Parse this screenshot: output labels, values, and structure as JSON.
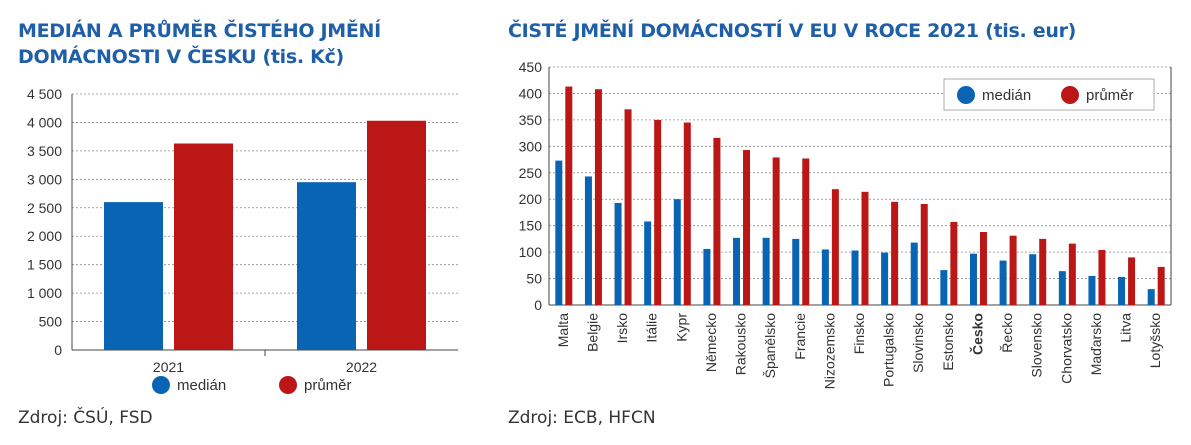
{
  "left_panel": {
    "title": "MEDIÁN A PRŮMĚR ČISTÉHO JMĚNÍ DOMÁCNOSTI V ČESKU (tis. Kč)",
    "source": "Zdroj: ČSÚ, FSD"
  },
  "right_panel": {
    "title": "ČISTÉ JMĚNÍ DOMÁCNOSTÍ V EU V ROCE 2021 (tis. eur)",
    "source": "Zdroj: ECB, HFCN"
  },
  "colors": {
    "median": "#0a64b4",
    "mean": "#bb1717",
    "title": "#1f5fa8"
  },
  "chart_data": [
    {
      "type": "bar",
      "title": "MEDIÁN A PRŮMĚR ČISTÉHO JMĚNÍ DOMÁCNOSTI V ČESKU (tis. Kč)",
      "categories": [
        "2021",
        "2022"
      ],
      "series": [
        {
          "name": "medián",
          "values": [
            2600,
            2950
          ]
        },
        {
          "name": "průměr",
          "values": [
            3630,
            4030
          ]
        }
      ],
      "ylim": [
        0,
        4500
      ],
      "yticks": [
        0,
        500,
        1000,
        1500,
        2000,
        2500,
        3000,
        3500,
        4000,
        4500
      ],
      "ytick_labels": [
        "0",
        "500",
        "1 000",
        "1 500",
        "2 000",
        "2 500",
        "3 000",
        "3 500",
        "4 000",
        "4 500"
      ],
      "grid": true,
      "legend": "bottom"
    },
    {
      "type": "bar",
      "title": "ČISTÉ JMĚNÍ DOMÁCNOSTÍ V EU V ROCE 2021 (tis. eur)",
      "categories": [
        "Malta",
        "Belgie",
        "Irsko",
        "Itálie",
        "Kypr",
        "Německo",
        "Rakousko",
        "Španělsko",
        "Francie",
        "Nizozemsko",
        "Finsko",
        "Portugalsko",
        "Slovinsko",
        "Estonsko",
        "Česko",
        "Řecko",
        "Slovensko",
        "Chorvatsko",
        "Maďarsko",
        "Litva",
        "Lotyšsko"
      ],
      "highlight_category": "Česko",
      "series": [
        {
          "name": "medián",
          "values": [
            273,
            243,
            193,
            158,
            200,
            106,
            127,
            127,
            125,
            105,
            103,
            99,
            118,
            66,
            97,
            84,
            96,
            64,
            55,
            53,
            30
          ]
        },
        {
          "name": "průměr",
          "values": [
            413,
            408,
            370,
            350,
            345,
            316,
            293,
            279,
            277,
            219,
            214,
            195,
            191,
            157,
            138,
            131,
            125,
            116,
            104,
            90,
            72
          ]
        }
      ],
      "ylim": [
        0,
        450
      ],
      "yticks": [
        0,
        50,
        100,
        150,
        200,
        250,
        300,
        350,
        400,
        450
      ],
      "ytick_labels": [
        "0",
        "50",
        "100",
        "150",
        "200",
        "250",
        "300",
        "350",
        "400",
        "450"
      ],
      "grid": true,
      "legend": "top-right"
    }
  ]
}
